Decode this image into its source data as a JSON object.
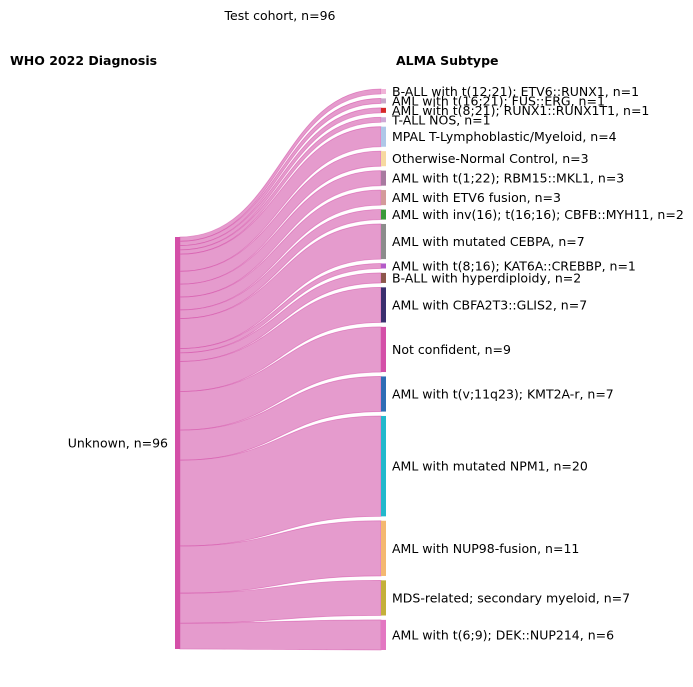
{
  "chart_data": {
    "type": "sankey",
    "title": "Test cohort, n=96",
    "left_header": "WHO 2022 Diagnosis",
    "right_header": "ALMA Subtype",
    "colors": {
      "flow": "#e089c4",
      "source_bar": "#d44fa8"
    },
    "source": {
      "label": "Unknown, n=96",
      "value": 96
    },
    "targets": [
      {
        "label": "B-ALL with t(12;21); ETV6::RUNX1, n=1",
        "value": 1,
        "color": "#f0b3d8"
      },
      {
        "label": "AML with t(16;21); FUS::ERG, n=1",
        "value": 1,
        "color": "#c9a6c9"
      },
      {
        "label": "AML with t(8;21); RUNX1::RUNX1T1, n=1",
        "value": 1,
        "color": "#d62728"
      },
      {
        "label": "T-ALL NOS, n=1",
        "value": 1,
        "color": "#cfa9d6"
      },
      {
        "label": "MPAL T-Lymphoblastic/Myeloid, n=4",
        "value": 4,
        "color": "#aec7e8"
      },
      {
        "label": "Otherwise-Normal Control, n=3",
        "value": 3,
        "color": "#f7d9a0"
      },
      {
        "label": "AML with t(1;22); RBM15::MKL1, n=3",
        "value": 3,
        "color": "#a87aa0"
      },
      {
        "label": "AML with ETV6 fusion, n=3",
        "value": 3,
        "color": "#d49a9a"
      },
      {
        "label": "AML with inv(16); t(16;16); CBFB::MYH11, n=2",
        "value": 2,
        "color": "#3a9a3a"
      },
      {
        "label": "AML with mutated CEBPA, n=7",
        "value": 7,
        "color": "#8c8c8c"
      },
      {
        "label": "AML with t(8;16); KAT6A::CREBBP, n=1",
        "value": 1,
        "color": "#b45ac8"
      },
      {
        "label": "B-ALL with hyperdiploidy, n=2",
        "value": 2,
        "color": "#8c564b"
      },
      {
        "label": "AML with CBFA2T3::GLIS2, n=7",
        "value": 7,
        "color": "#3b2f6e"
      },
      {
        "label": "Not confident, n=9",
        "value": 9,
        "color": "#d44fa8"
      },
      {
        "label": "AML with t(v;11q23); KMT2A-r, n=7",
        "value": 7,
        "color": "#2f6db5"
      },
      {
        "label": "AML with mutated NPM1, n=20",
        "value": 20,
        "color": "#23b8cc"
      },
      {
        "label": "AML with NUP98-fusion, n=11",
        "value": 11,
        "color": "#f4b870"
      },
      {
        "label": "MDS-related; secondary myeloid, n=7",
        "value": 7,
        "color": "#c4b03a"
      },
      {
        "label": "AML with t(6;9); DEK::NUP214, n=6",
        "value": 6,
        "color": "#e377c2"
      }
    ]
  }
}
